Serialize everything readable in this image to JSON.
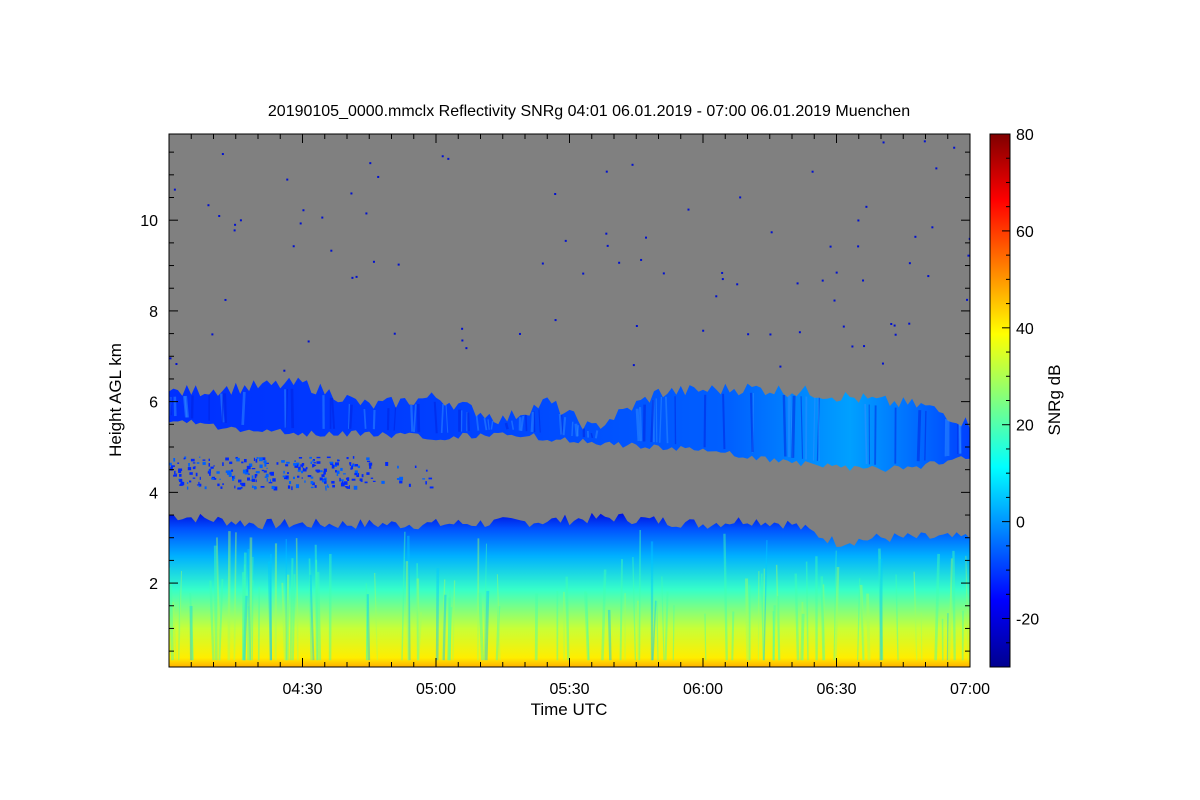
{
  "chart_data": {
    "type": "heatmap",
    "title": "20190105_0000.mmclx Reflectivity SNRg   04:01 06.01.2019 - 07:00 06.01.2019 Muenchen",
    "xlabel": "Time UTC",
    "ylabel": "Height AGL km",
    "colorbar_label": "SNRg dB",
    "x_range": [
      "04:01",
      "07:00"
    ],
    "y_range_km": [
      0.15,
      11.9
    ],
    "x_ticks": [
      {
        "value_min": 30,
        "label": "04:30"
      },
      {
        "value_min": 60,
        "label": "05:00"
      },
      {
        "value_min": 90,
        "label": "05:30"
      },
      {
        "value_min": 120,
        "label": "06:00"
      },
      {
        "value_min": 150,
        "label": "06:30"
      },
      {
        "value_min": 180,
        "label": "07:00"
      }
    ],
    "y_ticks": [
      {
        "value": 2,
        "label": "2"
      },
      {
        "value": 4,
        "label": "4"
      },
      {
        "value": 6,
        "label": "6"
      },
      {
        "value": 8,
        "label": "8"
      },
      {
        "value": 10,
        "label": "10"
      }
    ],
    "colorbar_range_db": [
      -30,
      80
    ],
    "colorbar_ticks": [
      {
        "value": -20,
        "label": "-20"
      },
      {
        "value": 0,
        "label": "0"
      },
      {
        "value": 20,
        "label": "20"
      },
      {
        "value": 40,
        "label": "40"
      },
      {
        "value": 60,
        "label": "60"
      },
      {
        "value": 80,
        "label": "80"
      }
    ],
    "background_color": "#808080",
    "colormap": "jet",
    "echo_layers": [
      {
        "layer": "lower precipitation layer",
        "top_km": [
          [
            0,
            3.5
          ],
          [
            20,
            3.3
          ],
          [
            40,
            3.3
          ],
          [
            60,
            3.3
          ],
          [
            80,
            3.35
          ],
          [
            100,
            3.45
          ],
          [
            120,
            3.3
          ],
          [
            130,
            3.4
          ],
          [
            140,
            3.3
          ],
          [
            150,
            2.9
          ],
          [
            160,
            3.0
          ],
          [
            170,
            3.0
          ],
          [
            180,
            3.0
          ]
        ],
        "base_km": 0.15,
        "snr_db_at_base": 42,
        "snr_db_mid": 15,
        "snr_db_at_top": -12
      },
      {
        "layer": "mid-level cloud layer",
        "top_km": [
          [
            0,
            6.2
          ],
          [
            15,
            6.3
          ],
          [
            30,
            6.4
          ],
          [
            45,
            5.9
          ],
          [
            60,
            6.1
          ],
          [
            75,
            5.6
          ],
          [
            85,
            6.0
          ],
          [
            95,
            5.4
          ],
          [
            110,
            6.2
          ],
          [
            130,
            6.3
          ],
          [
            145,
            6.2
          ],
          [
            160,
            6.0
          ],
          [
            170,
            5.9
          ],
          [
            180,
            5.5
          ]
        ],
        "base_km": [
          [
            0,
            5.6
          ],
          [
            15,
            5.4
          ],
          [
            30,
            5.3
          ],
          [
            45,
            5.3
          ],
          [
            60,
            5.2
          ],
          [
            75,
            5.3
          ],
          [
            85,
            5.2
          ],
          [
            95,
            5.1
          ],
          [
            110,
            5.0
          ],
          [
            130,
            4.8
          ],
          [
            145,
            4.6
          ],
          [
            160,
            4.5
          ],
          [
            170,
            4.6
          ],
          [
            180,
            4.8
          ]
        ],
        "snr_db": [
          -22,
          5
        ]
      },
      {
        "layer": "thin layer near 4.5 km",
        "x_min": [
          0,
          60
        ],
        "height_km": [
          4.1,
          4.8
        ],
        "snr_db": -20
      }
    ]
  }
}
